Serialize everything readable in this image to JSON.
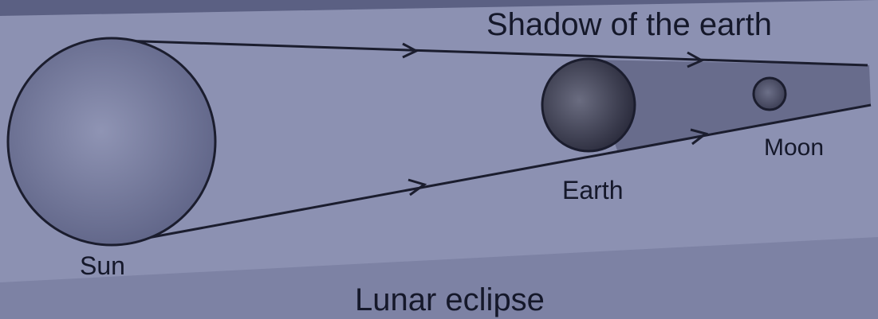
{
  "diagram": {
    "labels": {
      "shadow": "Shadow of the earth",
      "sun": "Sun",
      "earth": "Earth",
      "moon": "Moon"
    },
    "caption": "Lunar eclipse"
  }
}
